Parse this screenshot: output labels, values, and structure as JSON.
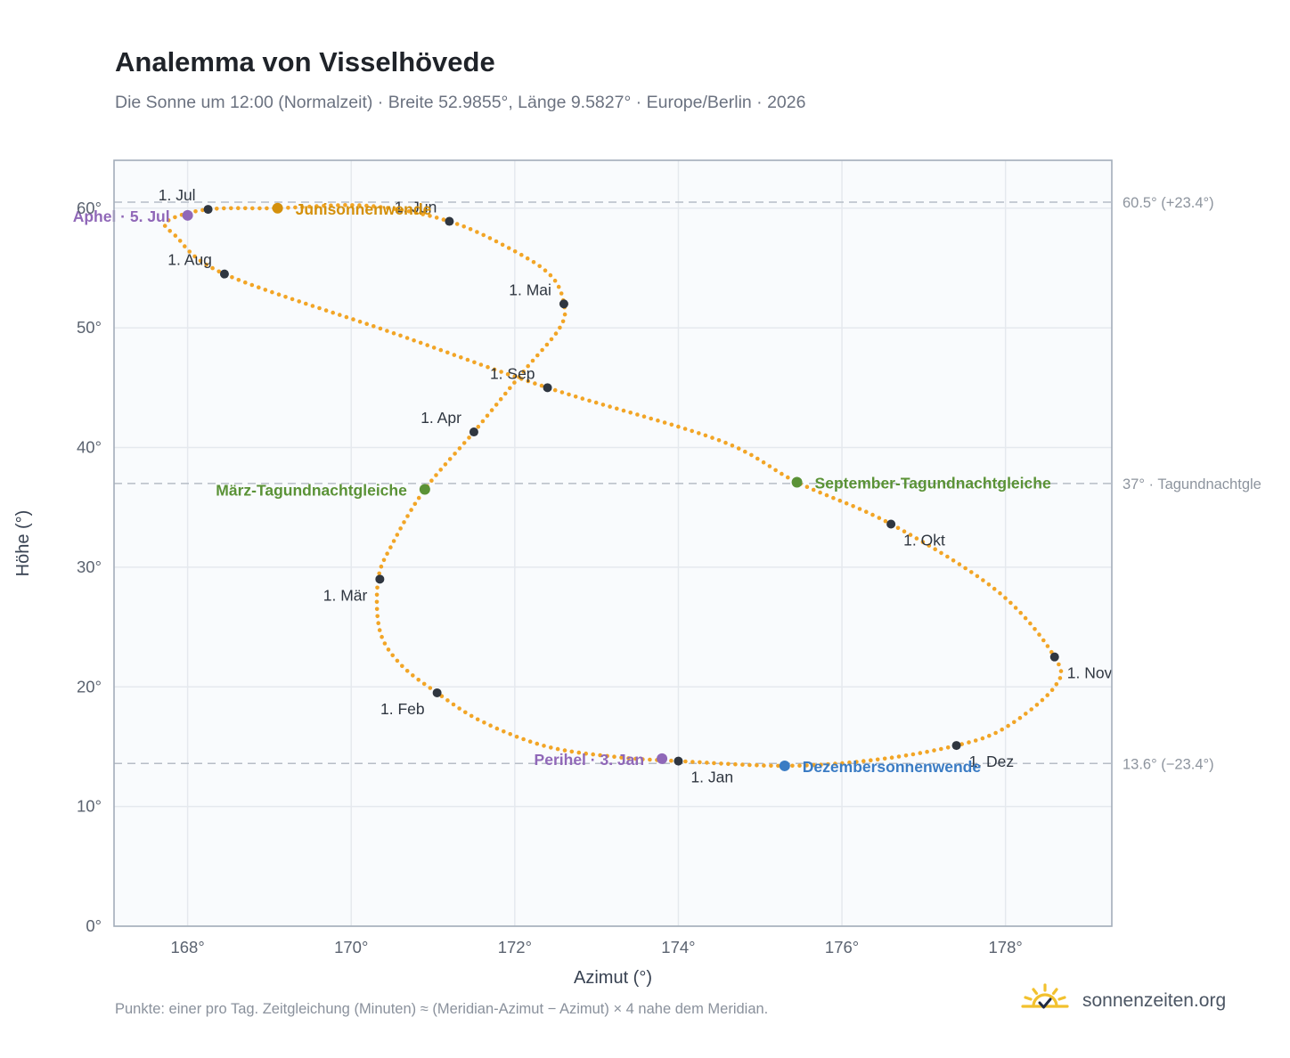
{
  "header": {
    "title": "Analemma von Visselhövede",
    "subtitle": "Die Sonne um 12:00 (Normalzeit) · Breite 52.9855°, Länge 9.5827° · Europe/Berlin · 2026"
  },
  "footer": {
    "note": "Punkte: einer pro Tag. Zeitgleichung (Minuten) ≈ (Meridian-Azimut − Azimut) × 4 nahe dem Meridian.",
    "brand": "sonnenzeiten.org"
  },
  "colors": {
    "curve": "#f2a526",
    "month_dot": "#2f3640",
    "june": "#d4900c",
    "december": "#3b7cc4",
    "equinox": "#5a9236",
    "apsis": "#9068b8",
    "grid": "#e5e9ee",
    "plot_bg": "#f9fbfd",
    "frame": "#a3adba",
    "ref_line": "#b6bdc6"
  },
  "chart_data": {
    "type": "scatter",
    "title": "Analemma von Visselhövede",
    "xlabel": "Azimut (°)",
    "ylabel": "Höhe (°)",
    "xlim": [
      167.1,
      179.3
    ],
    "ylim": [
      0,
      64
    ],
    "xticks": [
      168,
      170,
      172,
      174,
      176,
      178
    ],
    "yticks": [
      0,
      10,
      20,
      30,
      40,
      50,
      60
    ],
    "tick_suffix": "°",
    "grid": true,
    "month_points": [
      {
        "label": "1. Jan",
        "az": 174.0,
        "alt": 13.8,
        "label_pos": "below-right"
      },
      {
        "label": "1. Feb",
        "az": 171.05,
        "alt": 19.5,
        "label_pos": "below-left"
      },
      {
        "label": "1. Mär",
        "az": 170.35,
        "alt": 29.0,
        "label_pos": "below-left"
      },
      {
        "label": "1. Apr",
        "az": 171.5,
        "alt": 41.3,
        "label_pos": "above-left"
      },
      {
        "label": "1. Mai",
        "az": 172.6,
        "alt": 52.0,
        "label_pos": "above-left"
      },
      {
        "label": "1. Jun",
        "az": 171.2,
        "alt": 58.9,
        "label_pos": "above-left"
      },
      {
        "label": "1. Jul",
        "az": 168.25,
        "alt": 59.9,
        "label_pos": "above-left"
      },
      {
        "label": "1. Aug",
        "az": 168.45,
        "alt": 54.5,
        "label_pos": "above-left"
      },
      {
        "label": "1. Sep",
        "az": 172.4,
        "alt": 45.0,
        "label_pos": "above-left"
      },
      {
        "label": "1. Okt",
        "az": 176.6,
        "alt": 33.6,
        "label_pos": "below-right"
      },
      {
        "label": "1. Nov",
        "az": 178.6,
        "alt": 22.5,
        "label_pos": "below-right"
      },
      {
        "label": "1. Dez",
        "az": 177.4,
        "alt": 15.1,
        "label_pos": "below-right"
      }
    ],
    "events": [
      {
        "label": "Junisonnenwende",
        "az": 169.1,
        "alt": 60.0,
        "color": "#d4900c",
        "anchor": "start"
      },
      {
        "label": "Dezembersonnenwende",
        "az": 175.3,
        "alt": 13.4,
        "color": "#3b7cc4",
        "anchor": "start"
      },
      {
        "label": "März-Tagundnachtgleiche",
        "az": 170.9,
        "alt": 36.5,
        "color": "#5a9236",
        "anchor": "end"
      },
      {
        "label": "September-Tagundnachtgleiche",
        "az": 175.45,
        "alt": 37.1,
        "color": "#5a9236",
        "anchor": "start"
      },
      {
        "label": "Aphel · 5. Jul",
        "az": 168.0,
        "alt": 59.4,
        "color": "#9068b8",
        "anchor": "end"
      },
      {
        "label": "Perihel · 3. Jan",
        "az": 173.8,
        "alt": 14.0,
        "color": "#9068b8",
        "anchor": "end"
      }
    ],
    "reference_lines": [
      {
        "alt": 60.5,
        "label": "60.5° (+23.4°)"
      },
      {
        "alt": 37.0,
        "label": "37° · Tagundnachtgle"
      },
      {
        "alt": 13.6,
        "label": "13.6° (−23.4°)"
      }
    ],
    "curve_path": [
      [
        174.0,
        13.8
      ],
      [
        173.3,
        14.1
      ],
      [
        172.4,
        15.0
      ],
      [
        171.6,
        17.1
      ],
      [
        171.05,
        19.5
      ],
      [
        170.6,
        21.9
      ],
      [
        170.35,
        24.7
      ],
      [
        170.33,
        29.0
      ],
      [
        170.5,
        31.9
      ],
      [
        170.9,
        36.5
      ],
      [
        171.5,
        41.3
      ],
      [
        172.1,
        46.3
      ],
      [
        172.55,
        50.0
      ],
      [
        172.6,
        52.0
      ],
      [
        172.45,
        54.3
      ],
      [
        172.0,
        56.4
      ],
      [
        171.2,
        58.9
      ],
      [
        170.2,
        60.2
      ],
      [
        169.1,
        60.0
      ],
      [
        168.25,
        59.9
      ],
      [
        167.75,
        58.9
      ],
      [
        167.85,
        57.7
      ],
      [
        168.45,
        54.5
      ],
      [
        170.5,
        49.6
      ],
      [
        172.4,
        45.0
      ],
      [
        174.5,
        40.6
      ],
      [
        175.45,
        37.1
      ],
      [
        176.6,
        33.6
      ],
      [
        177.9,
        28.0
      ],
      [
        178.6,
        22.5
      ],
      [
        178.6,
        20.0
      ],
      [
        178.0,
        16.6
      ],
      [
        177.4,
        15.1
      ],
      [
        176.4,
        13.9
      ],
      [
        175.3,
        13.4
      ],
      [
        174.0,
        13.8
      ]
    ]
  }
}
